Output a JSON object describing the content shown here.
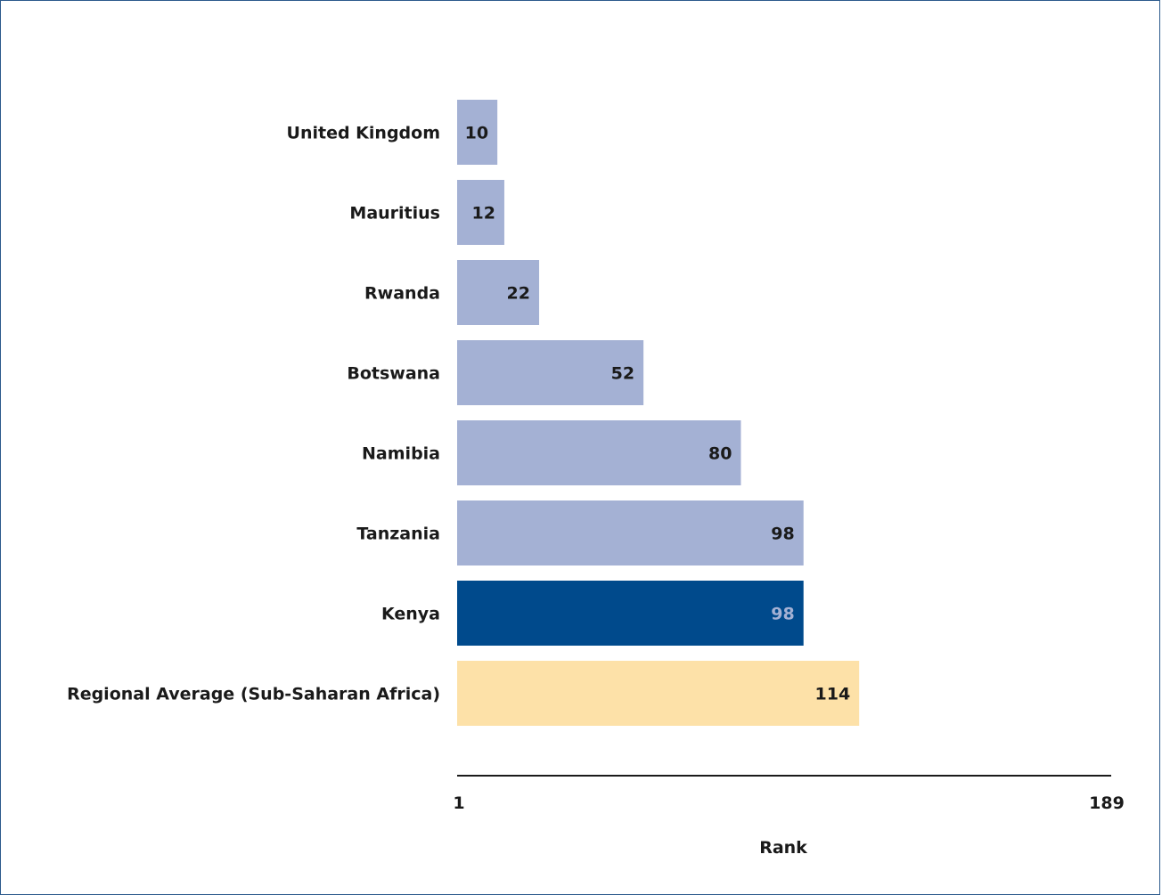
{
  "chart_data": {
    "type": "bar",
    "orientation": "horizontal",
    "title": "",
    "xlabel": "Rank",
    "ylabel": "",
    "xlim": [
      1,
      189
    ],
    "tick_labels": [
      "1",
      "189"
    ],
    "grid": false,
    "legend": "none",
    "categories": [
      "United Kingdom",
      "Mauritius",
      "Rwanda",
      "Botswana",
      "Namibia",
      "Tanzania",
      "Kenya",
      "Regional Average (Sub-Saharan Africa)"
    ],
    "values": [
      10,
      12,
      22,
      52,
      80,
      98,
      98,
      114
    ],
    "value_labels": [
      "10",
      "12",
      "22",
      "52",
      "80",
      "98",
      "98",
      "114"
    ],
    "colors": {
      "default_bar": "#a4b1d4",
      "highlight_bar": "#004a8c",
      "average_bar": "#fde1a8",
      "highlight_label": "#a4b1d4",
      "label": "#1a1a1a",
      "axis": "#1a1a1a",
      "frame": "#2c5a8c"
    },
    "highlight_category": "Kenya",
    "average_category": "Regional Average (Sub-Saharan Africa)"
  }
}
